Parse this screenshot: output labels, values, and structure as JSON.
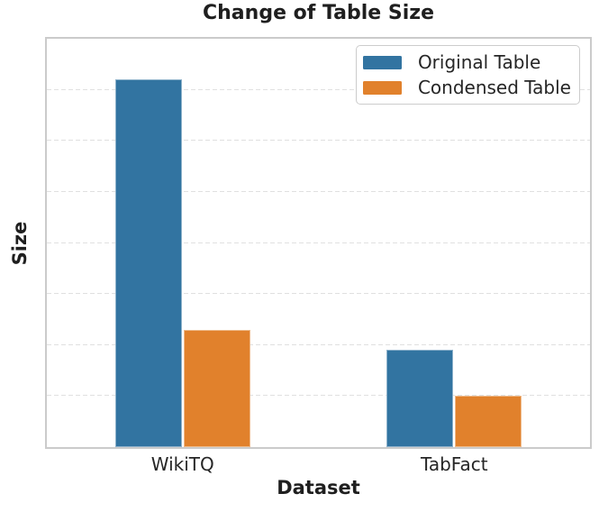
{
  "chart_data": {
    "type": "bar",
    "title": "Change of Table Size",
    "xlabel": "Dataset",
    "ylabel": "Size",
    "categories": [
      "WikiTQ",
      "TabFact"
    ],
    "series": [
      {
        "name": "Original Table",
        "color": "#3274A1",
        "values": [
          7.2,
          1.9
        ]
      },
      {
        "name": "Condensed Table",
        "color": "#E1812C",
        "values": [
          2.3,
          1.0
        ]
      }
    ],
    "ylim": [
      0,
      8
    ],
    "gridline_step": 1,
    "grid": "horizontal-dashed",
    "y_tick_labels_visible": false,
    "legend_position": "upper-right",
    "theme": {
      "frame_border": "#cbcbcb",
      "gridline": "#e0e0e0",
      "text": "#262626",
      "background": "#ffffff"
    }
  }
}
